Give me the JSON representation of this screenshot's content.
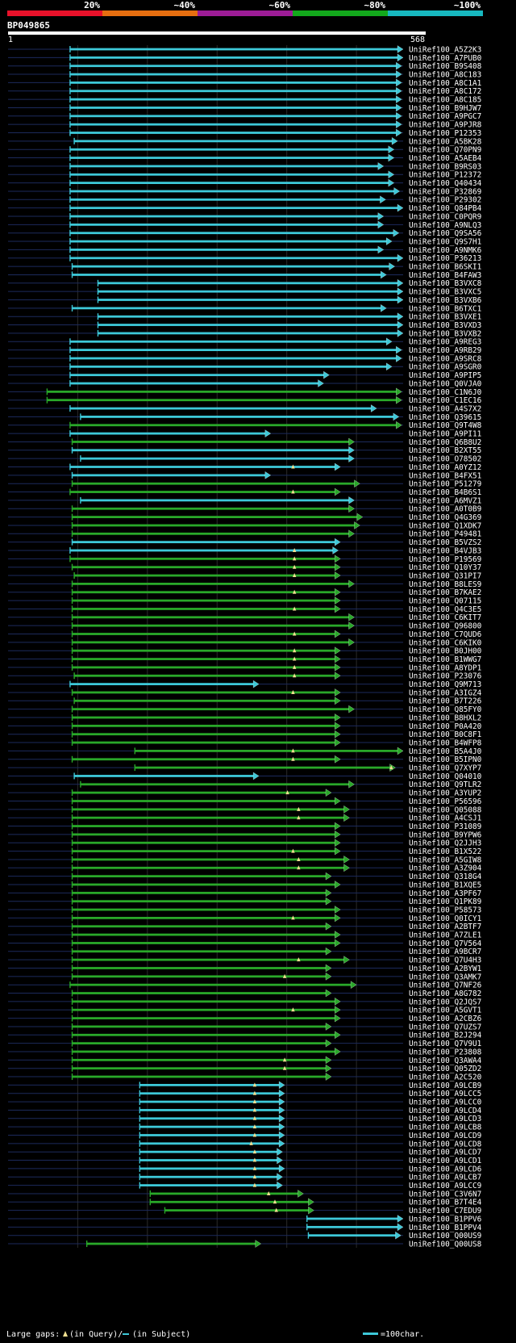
{
  "query": {
    "id": "BP049865",
    "start_label": "1",
    "end_label": "568",
    "length": 568
  },
  "identity_scale": {
    "labels": [
      "20%",
      "~40%",
      "~60%",
      "~80%",
      "~100%"
    ],
    "colors": [
      "#e8112a",
      "#e66e10",
      "#9c1c96",
      "#13a81c",
      "#17b8c0"
    ]
  },
  "colors": {
    "cyan": "#3dc8d8",
    "green": "#29a829",
    "gap": "#f0e090",
    "guide": "#1c2a5c",
    "grid": "#2a2a2a"
  },
  "legend": {
    "large_gaps_label": "Large gaps:",
    "in_query_label": "(in Query)/",
    "in_subject_label": "(in Subject)",
    "scale_label": "=100char."
  },
  "hits": [
    {
      "id": "UniRef100_A5Z2K3",
      "start": 90,
      "end": 568,
      "color": "cyan"
    },
    {
      "id": "UniRef100_A7PUB0",
      "start": 90,
      "end": 568,
      "color": "cyan"
    },
    {
      "id": "UniRef100_B9S408",
      "start": 90,
      "end": 566,
      "color": "cyan"
    },
    {
      "id": "UniRef100_A8C183",
      "start": 90,
      "end": 566,
      "color": "cyan"
    },
    {
      "id": "UniRef100_A8C1A1",
      "start": 90,
      "end": 566,
      "color": "cyan"
    },
    {
      "id": "UniRef100_A8C172",
      "start": 90,
      "end": 566,
      "color": "cyan"
    },
    {
      "id": "UniRef100_A8C185",
      "start": 90,
      "end": 566,
      "color": "cyan"
    },
    {
      "id": "UniRef100_B9HJW7",
      "start": 90,
      "end": 566,
      "color": "cyan"
    },
    {
      "id": "UniRef100_A9PGC7",
      "start": 90,
      "end": 566,
      "color": "cyan"
    },
    {
      "id": "UniRef100_A9PJR8",
      "start": 90,
      "end": 566,
      "color": "cyan"
    },
    {
      "id": "UniRef100_P12353",
      "start": 90,
      "end": 566,
      "color": "cyan"
    },
    {
      "id": "UniRef100_A5BK28",
      "start": 96,
      "end": 560,
      "color": "cyan"
    },
    {
      "id": "UniRef100_Q70PN9",
      "start": 90,
      "end": 555,
      "color": "cyan"
    },
    {
      "id": "UniRef100_A5AEB4",
      "start": 90,
      "end": 555,
      "color": "cyan"
    },
    {
      "id": "UniRef100_B9RS03",
      "start": 90,
      "end": 540,
      "color": "cyan"
    },
    {
      "id": "UniRef100_P12372",
      "start": 90,
      "end": 555,
      "color": "cyan"
    },
    {
      "id": "UniRef100_Q40434",
      "start": 90,
      "end": 555,
      "color": "cyan"
    },
    {
      "id": "UniRef100_P32869",
      "start": 90,
      "end": 563,
      "color": "cyan"
    },
    {
      "id": "UniRef100_P29302",
      "start": 90,
      "end": 543,
      "color": "cyan"
    },
    {
      "id": "UniRef100_Q84PB4",
      "start": 90,
      "end": 568,
      "color": "cyan"
    },
    {
      "id": "UniRef100_C0PQR9",
      "start": 90,
      "end": 540,
      "color": "cyan"
    },
    {
      "id": "UniRef100_A9NLQ3",
      "start": 90,
      "end": 540,
      "color": "cyan"
    },
    {
      "id": "UniRef100_Q9SA56",
      "start": 90,
      "end": 562,
      "color": "cyan"
    },
    {
      "id": "UniRef100_Q9S7H1",
      "start": 90,
      "end": 552,
      "color": "cyan"
    },
    {
      "id": "UniRef100_A9NMK6",
      "start": 90,
      "end": 540,
      "color": "cyan"
    },
    {
      "id": "UniRef100_P36213",
      "start": 90,
      "end": 568,
      "color": "cyan"
    },
    {
      "id": "UniRef100_B6SKI1",
      "start": 93,
      "end": 556,
      "color": "cyan"
    },
    {
      "id": "UniRef100_B4FAW3",
      "start": 93,
      "end": 544,
      "color": "cyan"
    },
    {
      "id": "UniRef100_B3VXC8",
      "start": 130,
      "end": 568,
      "color": "cyan"
    },
    {
      "id": "UniRef100_B3VXC5",
      "start": 130,
      "end": 568,
      "color": "cyan"
    },
    {
      "id": "UniRef100_B3VXB6",
      "start": 130,
      "end": 568,
      "color": "cyan"
    },
    {
      "id": "UniRef100_B6TXC1",
      "start": 93,
      "end": 544,
      "color": "cyan"
    },
    {
      "id": "UniRef100_B3VXE1",
      "start": 130,
      "end": 568,
      "color": "cyan"
    },
    {
      "id": "UniRef100_B3VXD3",
      "start": 130,
      "end": 568,
      "color": "cyan"
    },
    {
      "id": "UniRef100_B3VXB2",
      "start": 130,
      "end": 568,
      "color": "cyan"
    },
    {
      "id": "UniRef100_A9REG3",
      "start": 90,
      "end": 552,
      "color": "cyan"
    },
    {
      "id": "UniRef100_A9RB29",
      "start": 90,
      "end": 566,
      "color": "cyan"
    },
    {
      "id": "UniRef100_A9SRC8",
      "start": 90,
      "end": 566,
      "color": "cyan"
    },
    {
      "id": "UniRef100_A9SGR0",
      "start": 90,
      "end": 552,
      "color": "cyan"
    },
    {
      "id": "UniRef100_A9PIP5",
      "start": 90,
      "end": 462,
      "color": "cyan"
    },
    {
      "id": "UniRef100_Q0VJA0",
      "start": 90,
      "end": 454,
      "color": "cyan"
    },
    {
      "id": "UniRef100_C1N6J0",
      "start": 57,
      "end": 566,
      "color": "green"
    },
    {
      "id": "UniRef100_C1EC16",
      "start": 57,
      "end": 566,
      "color": "green"
    },
    {
      "id": "UniRef100_A4S7X2",
      "start": 90,
      "end": 530,
      "color": "cyan"
    },
    {
      "id": "UniRef100_Q39615",
      "start": 105,
      "end": 562,
      "color": "cyan"
    },
    {
      "id": "UniRef100_Q9T4W8",
      "start": 90,
      "end": 566,
      "color": "green"
    },
    {
      "id": "UniRef100_A9PI11",
      "start": 90,
      "end": 378,
      "color": "cyan"
    },
    {
      "id": "UniRef100_Q6B8U2",
      "start": 93,
      "end": 498,
      "color": "green"
    },
    {
      "id": "UniRef100_B2XT55",
      "start": 93,
      "end": 498,
      "color": "cyan"
    },
    {
      "id": "UniRef100_O78502",
      "start": 105,
      "end": 498,
      "color": "cyan"
    },
    {
      "id": "UniRef100_A0YZ12",
      "start": 90,
      "end": 478,
      "color": "cyan",
      "gap": 410
    },
    {
      "id": "UniRef100_B4FX51",
      "start": 93,
      "end": 378,
      "color": "cyan"
    },
    {
      "id": "UniRef100_P51279",
      "start": 93,
      "end": 506,
      "color": "green"
    },
    {
      "id": "UniRef100_B4B6S1",
      "start": 90,
      "end": 478,
      "color": "green",
      "gap": 410
    },
    {
      "id": "UniRef100_A6MVZ1",
      "start": 105,
      "end": 498,
      "color": "cyan"
    },
    {
      "id": "UniRef100_A0T0B9",
      "start": 93,
      "end": 498,
      "color": "green"
    },
    {
      "id": "UniRef100_Q4G369",
      "start": 93,
      "end": 510,
      "color": "green"
    },
    {
      "id": "UniRef100_Q1XDK7",
      "start": 93,
      "end": 506,
      "color": "green"
    },
    {
      "id": "UniRef100_P49481",
      "start": 93,
      "end": 498,
      "color": "green"
    },
    {
      "id": "UniRef100_B5VZS2",
      "start": 93,
      "end": 478,
      "color": "cyan"
    },
    {
      "id": "UniRef100_B4VJB3",
      "start": 90,
      "end": 475,
      "color": "cyan",
      "gap": 412
    },
    {
      "id": "UniRef100_P19569",
      "start": 90,
      "end": 478,
      "color": "green",
      "gap": 412
    },
    {
      "id": "UniRef100_Q10Y37",
      "start": 93,
      "end": 478,
      "color": "green",
      "gap": 412
    },
    {
      "id": "UniRef100_Q31PI7",
      "start": 96,
      "end": 478,
      "color": "green",
      "gap": 412
    },
    {
      "id": "UniRef100_B8LES9",
      "start": 93,
      "end": 498,
      "color": "green"
    },
    {
      "id": "UniRef100_B7KAE2",
      "start": 93,
      "end": 478,
      "color": "green",
      "gap": 412
    },
    {
      "id": "UniRef100_Q07115",
      "start": 93,
      "end": 478,
      "color": "green"
    },
    {
      "id": "UniRef100_Q4C3E5",
      "start": 93,
      "end": 478,
      "color": "green",
      "gap": 412
    },
    {
      "id": "UniRef100_C6KIT7",
      "start": 93,
      "end": 498,
      "color": "green"
    },
    {
      "id": "UniRef100_Q96800",
      "start": 93,
      "end": 498,
      "color": "green"
    },
    {
      "id": "UniRef100_C7QUD6",
      "start": 93,
      "end": 478,
      "color": "green",
      "gap": 412
    },
    {
      "id": "UniRef100_C6KIK0",
      "start": 93,
      "end": 498,
      "color": "green"
    },
    {
      "id": "UniRef100_B0JH00",
      "start": 93,
      "end": 478,
      "color": "green",
      "gap": 412
    },
    {
      "id": "UniRef100_B1WWG7",
      "start": 93,
      "end": 478,
      "color": "green",
      "gap": 412
    },
    {
      "id": "UniRef100_A8YDP1",
      "start": 93,
      "end": 478,
      "color": "green",
      "gap": 412
    },
    {
      "id": "UniRef100_P23076",
      "start": 96,
      "end": 478,
      "color": "green",
      "gap": 412
    },
    {
      "id": "UniRef100_Q9M713",
      "start": 90,
      "end": 361,
      "color": "cyan"
    },
    {
      "id": "UniRef100_A3IGZ4",
      "start": 93,
      "end": 478,
      "color": "green",
      "gap": 410
    },
    {
      "id": "UniRef100_B7T226",
      "start": 96,
      "end": 478,
      "color": "green"
    },
    {
      "id": "UniRef100_Q85FY0",
      "start": 93,
      "end": 498,
      "color": "green"
    },
    {
      "id": "UniRef100_B8HXL2",
      "start": 93,
      "end": 478,
      "color": "green"
    },
    {
      "id": "UniRef100_P0A420",
      "start": 93,
      "end": 478,
      "color": "green"
    },
    {
      "id": "UniRef100_B0C8F1",
      "start": 93,
      "end": 478,
      "color": "green"
    },
    {
      "id": "UniRef100_B4WFP8",
      "start": 93,
      "end": 478,
      "color": "green"
    },
    {
      "id": "UniRef100_B5A4J0",
      "start": 183,
      "end": 568,
      "color": "green",
      "gap": 410
    },
    {
      "id": "UniRef100_B5IPN0",
      "start": 93,
      "end": 478,
      "color": "green",
      "gap": 410
    },
    {
      "id": "UniRef100_Q7XYP7",
      "start": 183,
      "end": 557,
      "color": "green",
      "gap": 551
    },
    {
      "id": "UniRef100_Q04010",
      "start": 96,
      "end": 361,
      "color": "cyan"
    },
    {
      "id": "UniRef100_Q9TLR2",
      "start": 105,
      "end": 498,
      "color": "green"
    },
    {
      "id": "UniRef100_A3YUP2",
      "start": 93,
      "end": 465,
      "color": "green",
      "gap": 402
    },
    {
      "id": "UniRef100_P56596",
      "start": 93,
      "end": 478,
      "color": "green"
    },
    {
      "id": "UniRef100_Q05088",
      "start": 93,
      "end": 491,
      "color": "green",
      "gap": 418
    },
    {
      "id": "UniRef100_A4CSJ1",
      "start": 93,
      "end": 491,
      "color": "green",
      "gap": 418
    },
    {
      "id": "UniRef100_P31089",
      "start": 93,
      "end": 478,
      "color": "green"
    },
    {
      "id": "UniRef100_B9YPW6",
      "start": 93,
      "end": 478,
      "color": "green"
    },
    {
      "id": "UniRef100_Q2JJH3",
      "start": 93,
      "end": 478,
      "color": "green"
    },
    {
      "id": "UniRef100_B1X522",
      "start": 93,
      "end": 478,
      "color": "green",
      "gap": 410
    },
    {
      "id": "UniRef100_A5GIW8",
      "start": 93,
      "end": 491,
      "color": "green",
      "gap": 418
    },
    {
      "id": "UniRef100_A3Z904",
      "start": 93,
      "end": 491,
      "color": "green",
      "gap": 418
    },
    {
      "id": "UniRef100_Q318G4",
      "start": 93,
      "end": 465,
      "color": "green"
    },
    {
      "id": "UniRef100_B1XQE5",
      "start": 93,
      "end": 478,
      "color": "green"
    },
    {
      "id": "UniRef100_A3PF67",
      "start": 93,
      "end": 465,
      "color": "green"
    },
    {
      "id": "UniRef100_Q1PK89",
      "start": 93,
      "end": 465,
      "color": "green"
    },
    {
      "id": "UniRef100_P58573",
      "start": 93,
      "end": 478,
      "color": "green"
    },
    {
      "id": "UniRef100_Q0ICY1",
      "start": 93,
      "end": 478,
      "color": "green",
      "gap": 410
    },
    {
      "id": "UniRef100_A2BTF7",
      "start": 93,
      "end": 465,
      "color": "green"
    },
    {
      "id": "UniRef100_A7ZLE1",
      "start": 93,
      "end": 478,
      "color": "green"
    },
    {
      "id": "UniRef100_Q7V564",
      "start": 93,
      "end": 478,
      "color": "green"
    },
    {
      "id": "UniRef100_A9BCR7",
      "start": 93,
      "end": 465,
      "color": "green"
    },
    {
      "id": "UniRef100_Q7U4H3",
      "start": 93,
      "end": 491,
      "color": "green",
      "gap": 418
    },
    {
      "id": "UniRef100_A2BYW1",
      "start": 93,
      "end": 465,
      "color": "green"
    },
    {
      "id": "UniRef100_Q3AMK7",
      "start": 93,
      "end": 465,
      "color": "green",
      "gap": 398
    },
    {
      "id": "UniRef100_Q7NF26",
      "start": 90,
      "end": 501,
      "color": "green"
    },
    {
      "id": "UniRef100_A8G782",
      "start": 93,
      "end": 465,
      "color": "green"
    },
    {
      "id": "UniRef100_Q2JQS7",
      "start": 93,
      "end": 478,
      "color": "green"
    },
    {
      "id": "UniRef100_A5GVT1",
      "start": 93,
      "end": 478,
      "color": "green",
      "gap": 410
    },
    {
      "id": "UniRef100_A2CBZ6",
      "start": 93,
      "end": 478,
      "color": "green"
    },
    {
      "id": "UniRef100_Q7UZS7",
      "start": 93,
      "end": 465,
      "color": "green"
    },
    {
      "id": "UniRef100_B2J294",
      "start": 93,
      "end": 478,
      "color": "green"
    },
    {
      "id": "UniRef100_Q7V9U1",
      "start": 93,
      "end": 465,
      "color": "green"
    },
    {
      "id": "UniRef100_P23808",
      "start": 93,
      "end": 478,
      "color": "green"
    },
    {
      "id": "UniRef100_Q3AWA4",
      "start": 93,
      "end": 465,
      "color": "green",
      "gap": 398
    },
    {
      "id": "UniRef100_Q05ZD2",
      "start": 93,
      "end": 465,
      "color": "green",
      "gap": 398
    },
    {
      "id": "UniRef100_A2C520",
      "start": 93,
      "end": 465,
      "color": "green"
    },
    {
      "id": "UniRef100_A9LCB9",
      "start": 190,
      "end": 398,
      "color": "cyan",
      "gap": 355
    },
    {
      "id": "UniRef100_A9LCC5",
      "start": 190,
      "end": 398,
      "color": "cyan",
      "gap": 355
    },
    {
      "id": "UniRef100_A9LCC0",
      "start": 190,
      "end": 398,
      "color": "cyan",
      "gap": 355
    },
    {
      "id": "UniRef100_A9LCD4",
      "start": 190,
      "end": 398,
      "color": "cyan",
      "gap": 355
    },
    {
      "id": "UniRef100_A9LCD3",
      "start": 190,
      "end": 398,
      "color": "cyan",
      "gap": 355
    },
    {
      "id": "UniRef100_A9LCB8",
      "start": 190,
      "end": 398,
      "color": "cyan",
      "gap": 355
    },
    {
      "id": "UniRef100_A9LCD9",
      "start": 190,
      "end": 398,
      "color": "cyan",
      "gap": 355
    },
    {
      "id": "UniRef100_A9LCD8",
      "start": 190,
      "end": 398,
      "color": "cyan",
      "gap": 350
    },
    {
      "id": "UniRef100_A9LCD7",
      "start": 190,
      "end": 395,
      "color": "cyan",
      "gap": 355
    },
    {
      "id": "UniRef100_A9LCD1",
      "start": 190,
      "end": 395,
      "color": "cyan",
      "gap": 355
    },
    {
      "id": "UniRef100_A9LCD6",
      "start": 190,
      "end": 398,
      "color": "cyan",
      "gap": 355
    },
    {
      "id": "UniRef100_A9LCB7",
      "start": 190,
      "end": 395,
      "color": "cyan",
      "gap": 355
    },
    {
      "id": "UniRef100_A9LCC9",
      "start": 190,
      "end": 395,
      "color": "cyan",
      "gap": 355
    },
    {
      "id": "UniRef100_C3V6N7",
      "start": 205,
      "end": 425,
      "color": "green",
      "gap": 375
    },
    {
      "id": "UniRef100_B7T4E4",
      "start": 205,
      "end": 440,
      "color": "green",
      "gap": 384
    },
    {
      "id": "UniRef100_C7EDU9",
      "start": 226,
      "end": 440,
      "color": "green",
      "gap": 386
    },
    {
      "id": "UniRef100_B1PPV6",
      "start": 430,
      "end": 568,
      "color": "cyan"
    },
    {
      "id": "UniRef100_B1PPV4",
      "start": 430,
      "end": 568,
      "color": "cyan"
    },
    {
      "id": "UniRef100_Q00US9",
      "start": 432,
      "end": 565,
      "color": "cyan"
    },
    {
      "id": "UniRef100_Q00US8",
      "start": 114,
      "end": 364,
      "color": "green"
    }
  ]
}
